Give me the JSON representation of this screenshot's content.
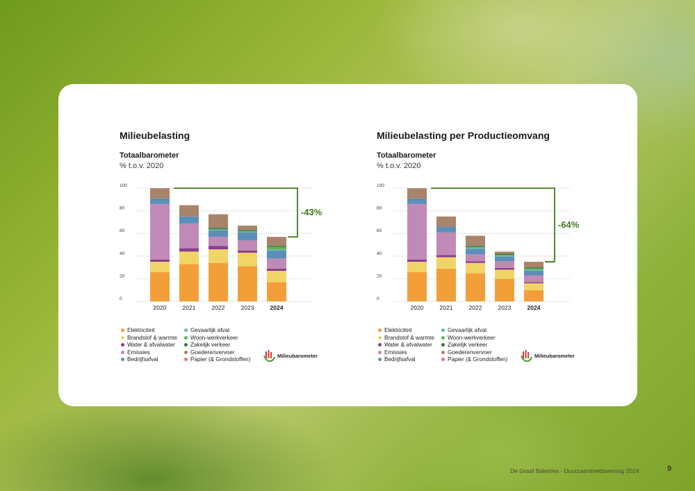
{
  "colors": {
    "Elektriciteit": "#f39f39",
    "Brandstof & warmte": "#f1d466",
    "Water & afvalwater": "#8a3f8c",
    "Emissies": "#c08ab6",
    "Bedrijfsafval": "#5b8fb8",
    "Gevaarlijk afval": "#6bb7a5",
    "Woon-werkverkeer": "#5fb55a",
    "Zakelijk verkeer": "#2f7a3c",
    "Goederenvervoer": "#a9846a",
    "Papier (& Grondstoffen)": "#e8766a",
    "accent": "#3f7a1c"
  },
  "legend": {
    "col1": [
      "Elektriciteit",
      "Brandstof & warmte",
      "Water & afvalwater",
      "Emissies",
      "Bedrijfsafval"
    ],
    "col2": [
      "Gevaarlijk afval",
      "Woon-werkverkeer",
      "Zakelijk verkeer",
      "Goederenvervoer",
      "Papier (& Grondstoffen)"
    ]
  },
  "brand": {
    "name": "Milieubarometer",
    "icon": "milieubarometer-logo-icon"
  },
  "footer": {
    "text": "De Graaf Bakeries - Duurzaamheidsverslag 2024",
    "page": "9"
  },
  "chart_data": [
    {
      "type": "bar",
      "stacked": true,
      "title": "Milieubelasting",
      "subtitle": "Totaalbarometer",
      "unit": "% t.o.v. 2020",
      "categories": [
        "2020",
        "2021",
        "2022",
        "2023",
        "2024"
      ],
      "bold_category": "2024",
      "ylim": [
        0,
        100
      ],
      "yticks": [
        0,
        20,
        40,
        60,
        80,
        100
      ],
      "grid": true,
      "annotation": "-43%",
      "series": [
        {
          "name": "Elektriciteit",
          "values": [
            26,
            33,
            34,
            31,
            17
          ]
        },
        {
          "name": "Brandstof & warmte",
          "values": [
            9,
            11,
            12,
            12,
            10
          ]
        },
        {
          "name": "Water & afvalwater",
          "values": [
            2,
            3,
            3,
            2,
            2
          ]
        },
        {
          "name": "Emissies",
          "values": [
            49,
            22,
            8,
            9,
            9
          ]
        },
        {
          "name": "Bedrijfsafval",
          "values": [
            5,
            6,
            6,
            7,
            7
          ]
        },
        {
          "name": "Gevaarlijk afval",
          "values": [
            0,
            0,
            0.5,
            0.5,
            1
          ]
        },
        {
          "name": "Woon-werkverkeer",
          "values": [
            0,
            0,
            0.5,
            0.5,
            2
          ]
        },
        {
          "name": "Zakelijk verkeer",
          "values": [
            0,
            0,
            1,
            1,
            1
          ]
        },
        {
          "name": "Goederenvervoer",
          "values": [
            9,
            10,
            12,
            4,
            8
          ]
        },
        {
          "name": "Papier (& Grondstoffen)",
          "values": [
            0,
            0,
            0,
            0,
            0
          ]
        }
      ]
    },
    {
      "type": "bar",
      "stacked": true,
      "title": "Milieubelasting per Productieomvang",
      "subtitle": "Totaalbarometer",
      "unit": "% t.o.v. 2020",
      "categories": [
        "2020",
        "2021",
        "2022",
        "2023",
        "2024"
      ],
      "bold_category": "2024",
      "ylim": [
        0,
        100
      ],
      "yticks": [
        0,
        20,
        40,
        60,
        80,
        100
      ],
      "grid": true,
      "annotation": "-64%",
      "series": [
        {
          "name": "Elektriciteit",
          "values": [
            26,
            29,
            25,
            20,
            10
          ]
        },
        {
          "name": "Brandstof & warmte",
          "values": [
            9,
            10,
            9,
            8,
            6
          ]
        },
        {
          "name": "Water & afvalwater",
          "values": [
            2,
            2,
            1.5,
            1.5,
            1
          ]
        },
        {
          "name": "Emissies",
          "values": [
            49,
            20,
            6,
            6,
            6
          ]
        },
        {
          "name": "Bedrijfsafval",
          "values": [
            5,
            5,
            5,
            4,
            4
          ]
        },
        {
          "name": "Gevaarlijk afval",
          "values": [
            0,
            0,
            1,
            1,
            1
          ]
        },
        {
          "name": "Woon-werkverkeer",
          "values": [
            0,
            0,
            0.5,
            0.5,
            1
          ]
        },
        {
          "name": "Zakelijk verkeer",
          "values": [
            0,
            0,
            1,
            1,
            1
          ]
        },
        {
          "name": "Goederenvervoer",
          "values": [
            9,
            9,
            9,
            2,
            5
          ]
        },
        {
          "name": "Papier (& Grondstoffen)",
          "values": [
            0,
            0,
            0,
            0,
            0
          ]
        }
      ]
    }
  ]
}
